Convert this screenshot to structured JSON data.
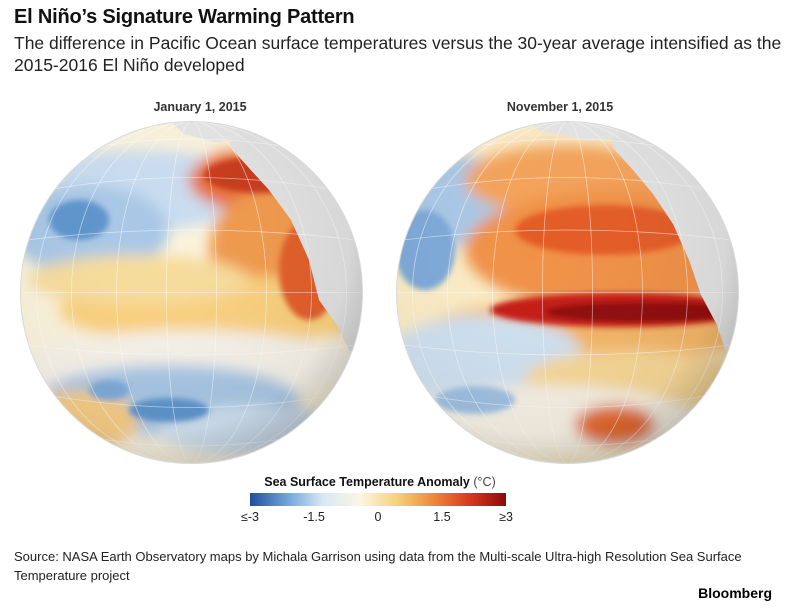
{
  "header": {
    "title": "El Niño’s Signature Warming Pattern",
    "subtitle": "The difference in Pacific Ocean surface temperatures versus the 30-year average intensified as the 2015-2016 El Niño developed"
  },
  "maps": [
    {
      "date_label": "January 1, 2015",
      "phase": "early"
    },
    {
      "date_label": "November 1, 2015",
      "phase": "peak"
    }
  ],
  "legend": {
    "title": "Sea Surface Temperature Anomaly",
    "unit": "(°C)",
    "ticks": [
      {
        "label": "≤-3",
        "value": -3
      },
      {
        "label": "-1.5",
        "value": -1.5
      },
      {
        "label": "0",
        "value": 0
      },
      {
        "label": "1.5",
        "value": 1.5
      },
      {
        "label": "≥3",
        "value": 3
      }
    ],
    "color_stops": [
      "#1f4e9c",
      "#6fa3d8",
      "#d8e8f5",
      "#fbf6e4",
      "#f6d37a",
      "#ee8a3a",
      "#d63a1e",
      "#8c0a0a"
    ]
  },
  "source": "Source: NASA Earth Observatory maps by Michala Garrison using data from the Multi-scale Ultra-high Resolution Sea Surface Temperature project",
  "brand": "Bloomberg"
}
